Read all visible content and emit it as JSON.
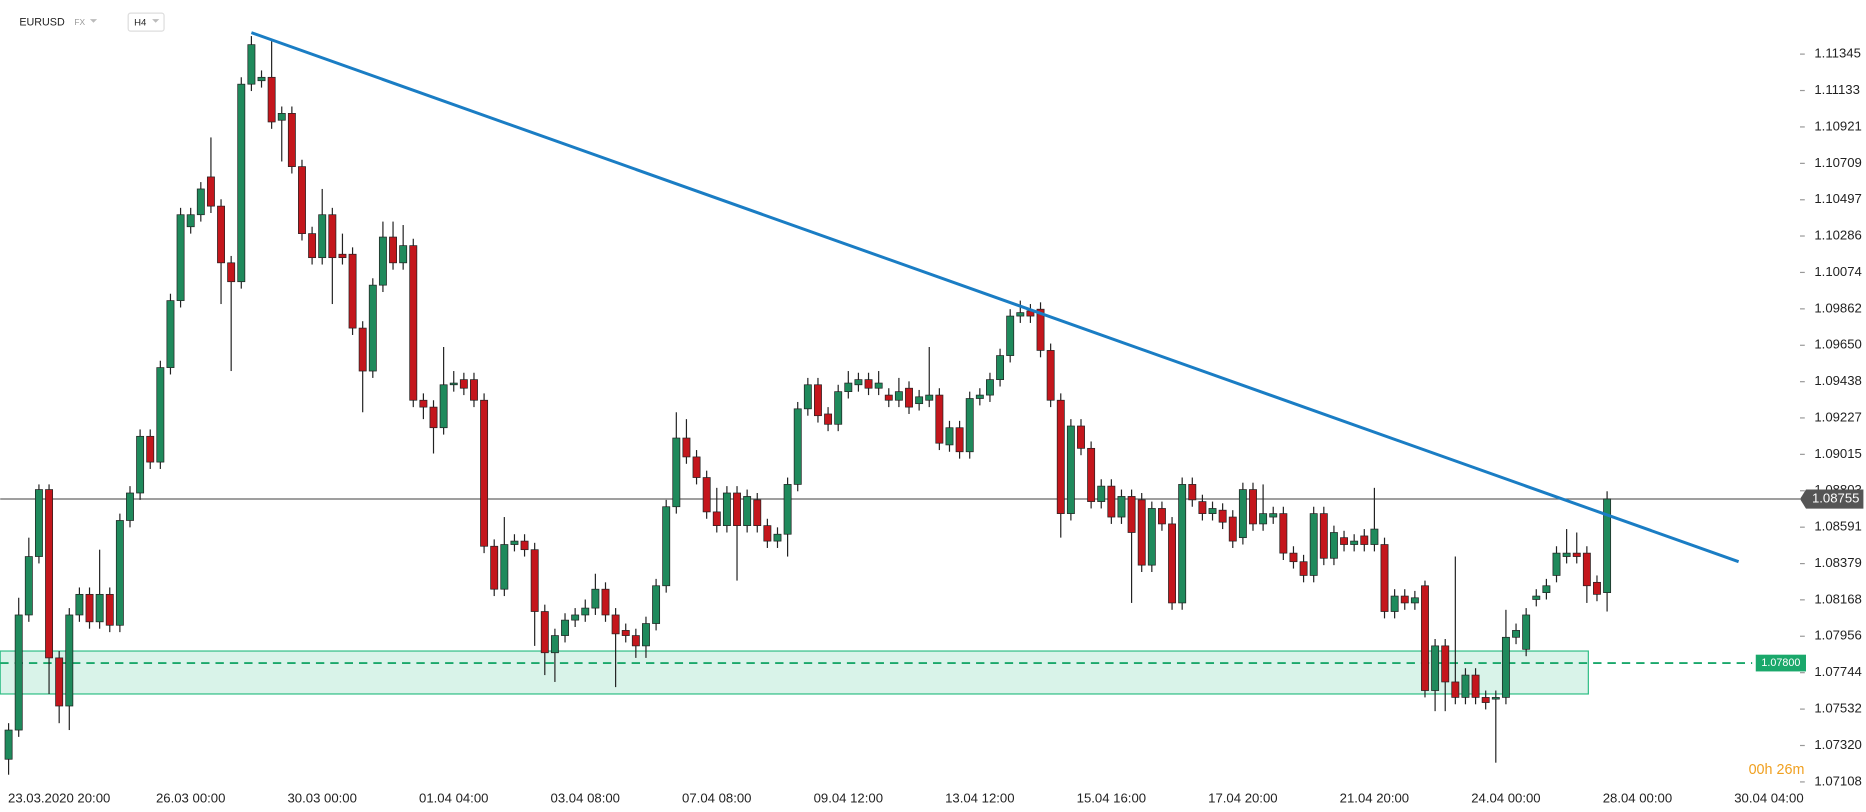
{
  "chart_data": {
    "type": "candlestick",
    "symbol": "EURUSD",
    "market": "FX",
    "timeframe": "H4",
    "countdown": "00h 26m",
    "up_color": "#1f8a5c",
    "down_color": "#c4161c",
    "ylim": [
      1.071,
      1.1166
    ],
    "yticks": [
      {
        "value": 1.11345,
        "label": "1.11345"
      },
      {
        "value": 1.11133,
        "label": "1.11133"
      },
      {
        "value": 1.10921,
        "label": "1.10921"
      },
      {
        "value": 1.10709,
        "label": "1.10709"
      },
      {
        "value": 1.10497,
        "label": "1.10497"
      },
      {
        "value": 1.10286,
        "label": "1.10286"
      },
      {
        "value": 1.10074,
        "label": "1.10074"
      },
      {
        "value": 1.09862,
        "label": "1.09862"
      },
      {
        "value": 1.0965,
        "label": "1.09650"
      },
      {
        "value": 1.09438,
        "label": "1.09438"
      },
      {
        "value": 1.09227,
        "label": "1.09227"
      },
      {
        "value": 1.09015,
        "label": "1.09015"
      },
      {
        "value": 1.08803,
        "label": "1.08803"
      },
      {
        "value": 1.08591,
        "label": "1.08591"
      },
      {
        "value": 1.08379,
        "label": "1.08379"
      },
      {
        "value": 1.08168,
        "label": "1.08168"
      },
      {
        "value": 1.07956,
        "label": "1.07956"
      },
      {
        "value": 1.07744,
        "label": "1.07744"
      },
      {
        "value": 1.07532,
        "label": "1.07532"
      },
      {
        "value": 1.0732,
        "label": "1.07320"
      },
      {
        "value": 1.07108,
        "label": "1.07108"
      }
    ],
    "categories": [
      null,
      null,
      null,
      null,
      null,
      "23.03.2020 20:00",
      null,
      null,
      null,
      null,
      null,
      null,
      null,
      null,
      null,
      null,
      null,
      null,
      "26.03 00:00",
      null,
      null,
      null,
      null,
      null,
      null,
      null,
      null,
      null,
      null,
      null,
      null,
      "30.03 00:00",
      null,
      null,
      null,
      null,
      null,
      null,
      null,
      null,
      null,
      null,
      null,
      null,
      "01.04 04:00",
      null,
      null,
      null,
      null,
      null,
      null,
      null,
      null,
      null,
      null,
      null,
      null,
      "03.04 08:00",
      null,
      null,
      null,
      null,
      null,
      null,
      null,
      null,
      null,
      null,
      null,
      null,
      "07.04 08:00",
      null,
      null,
      null,
      null,
      null,
      null,
      null,
      null,
      null,
      null,
      null,
      null,
      "09.04 12:00",
      null,
      null,
      null,
      null,
      null,
      null,
      null,
      null,
      null,
      null,
      null,
      null,
      "13.04 12:00",
      null,
      null,
      null,
      null,
      null,
      null,
      null,
      null,
      null,
      null,
      null,
      null,
      "15.04 16:00",
      null,
      null,
      null,
      null,
      null,
      null,
      null,
      null,
      null,
      null,
      null,
      null,
      "17.04 20:00",
      null,
      null,
      null,
      null,
      null,
      null,
      null,
      null,
      null,
      null,
      null,
      null,
      "21.04 20:00",
      null,
      null,
      null,
      null,
      null,
      null,
      null,
      null,
      null,
      null,
      null,
      null,
      "24.04 00:00",
      null,
      null,
      null,
      null,
      null,
      null,
      null,
      null,
      null,
      null,
      null,
      null,
      "28.04 00:00",
      null,
      null,
      null,
      null,
      null,
      null,
      null,
      null,
      null,
      null,
      null,
      null,
      "30.04 04:00"
    ],
    "open": [
      1.0724,
      1.0741,
      1.0808,
      1.0842,
      1.0881,
      1.0783,
      1.0755,
      1.0808,
      1.082,
      1.0804,
      1.082,
      1.0802,
      1.0863,
      1.0879,
      1.0912,
      1.0897,
      1.0952,
      1.0991,
      1.1034,
      1.1041,
      1.1063,
      1.1046,
      1.1013,
      1.1002,
      1.1117,
      1.1119,
      1.1121,
      1.1096,
      1.11,
      1.1069,
      1.103,
      1.1016,
      1.1041,
      1.1018,
      1.1018,
      1.0975,
      1.095,
      1.1,
      1.1028,
      1.1013,
      1.1023,
      1.0933,
      1.0929,
      1.0917,
      1.0942,
      1.0945,
      1.0945,
      1.0933,
      1.0848,
      1.0823,
      1.0849,
      1.0851,
      1.0846,
      1.081,
      1.0786,
      1.0796,
      1.0805,
      1.0808,
      1.0812,
      1.0823,
      1.0808,
      1.0799,
      1.0796,
      1.079,
      1.0803,
      1.0825,
      1.0871,
      1.0911,
      1.09,
      1.0888,
      1.0868,
      1.086,
      1.0879,
      1.086,
      1.0875,
      1.086,
      1.0851,
      1.0855,
      1.0884,
      1.0928,
      1.0942,
      1.0925,
      1.0919,
      1.0938,
      1.0942,
      1.0945,
      1.094,
      1.0936,
      1.0933,
      1.094,
      1.0931,
      1.0933,
      1.0936,
      1.0907,
      1.0917,
      1.0903,
      1.0934,
      1.0936,
      1.0945,
      1.0959,
      1.0982,
      1.0985,
      1.0986,
      1.0962,
      1.0933,
      1.0867,
      1.0918,
      1.0905,
      1.0874,
      1.0883,
      1.0865,
      1.0877,
      1.0875,
      1.0837,
      1.087,
      1.0861,
      1.0815,
      1.0884,
      1.0874,
      1.0867,
      1.0869,
      1.0865,
      1.0853,
      1.0881,
      1.0861,
      1.0865,
      1.0867,
      1.0844,
      1.0839,
      1.0831,
      1.0867,
      1.0841,
      1.0853,
      1.0849,
      1.0854,
      1.0849,
      1.0849,
      1.081,
      1.0819,
      1.0815,
      1.0825,
      1.0764,
      1.079,
      1.0769,
      1.076,
      1.0773,
      1.076,
      1.0759,
      1.076,
      1.0795,
      1.0788,
      1.0817,
      1.0821,
      1.0831,
      1.0842,
      1.0844,
      1.0844,
      1.0827,
      1.0821,
      null,
      null,
      null,
      null,
      null,
      null,
      null,
      null,
      null,
      null,
      null,
      null,
      null,
      null,
      null,
      null
    ],
    "high": [
      1.0745,
      1.0818,
      1.0853,
      1.0884,
      1.0884,
      1.0787,
      1.0812,
      1.0824,
      1.0824,
      1.0846,
      1.0824,
      1.0867,
      1.0883,
      1.0916,
      1.0916,
      1.0956,
      1.0995,
      1.1045,
      1.1045,
      1.106,
      1.1086,
      1.105,
      1.1017,
      1.1121,
      1.1145,
      1.1125,
      1.1142,
      1.1104,
      1.1104,
      1.1073,
      1.1034,
      1.1056,
      1.1045,
      1.103,
      1.1022,
      1.0979,
      1.1004,
      1.1037,
      1.1037,
      1.1035,
      1.1027,
      1.0937,
      1.0933,
      1.0964,
      1.095,
      1.0949,
      1.0949,
      1.0937,
      1.0852,
      1.0865,
      1.0855,
      1.0855,
      1.085,
      1.0814,
      1.08,
      1.0809,
      1.0812,
      1.0817,
      1.0832,
      1.0827,
      1.0812,
      1.0803,
      1.08,
      1.0807,
      1.0829,
      1.0875,
      1.0926,
      1.0922,
      1.0904,
      1.0892,
      1.0882,
      1.0883,
      1.0883,
      1.0881,
      1.0879,
      1.0864,
      1.0859,
      1.0888,
      1.0932,
      1.0946,
      1.0946,
      1.0929,
      1.0942,
      1.095,
      1.0949,
      1.0949,
      1.095,
      1.094,
      1.0946,
      1.0944,
      1.0939,
      1.0964,
      1.094,
      1.0921,
      1.0921,
      1.0938,
      1.094,
      1.0949,
      1.0963,
      1.0986,
      1.0991,
      1.0989,
      1.099,
      1.0966,
      1.0937,
      1.0922,
      1.0922,
      1.0909,
      1.0887,
      1.0887,
      1.0881,
      1.0881,
      1.0879,
      1.0874,
      1.0874,
      1.0865,
      1.0888,
      1.0888,
      1.0878,
      1.0874,
      1.0873,
      1.0869,
      1.0885,
      1.0885,
      1.0884,
      1.0871,
      1.0871,
      1.0848,
      1.0843,
      1.0871,
      1.0871,
      1.086,
      1.0857,
      1.0855,
      1.0858,
      1.0882,
      1.0853,
      1.0823,
      1.0823,
      1.0822,
      1.0828,
      1.0794,
      1.0794,
      1.0842,
      1.0777,
      1.0777,
      1.0764,
      1.0764,
      1.0811,
      1.0803,
      1.0812,
      1.0823,
      1.0829,
      1.0848,
      1.0858,
      1.0856,
      1.0848,
      1.0831,
      1.088,
      null,
      null,
      null,
      null,
      null,
      null,
      null,
      null,
      null,
      null,
      null,
      null,
      null,
      null,
      null,
      null
    ],
    "low": [
      1.0715,
      1.0737,
      1.0804,
      1.0838,
      1.0762,
      1.0745,
      1.0741,
      1.0804,
      1.08,
      1.08,
      1.0798,
      1.0798,
      1.0859,
      1.0875,
      1.0893,
      1.0893,
      1.0948,
      1.0987,
      1.103,
      1.1037,
      1.1042,
      1.0989,
      1.095,
      1.0998,
      1.1113,
      1.1115,
      1.1091,
      1.1072,
      1.1065,
      1.1026,
      1.1012,
      1.1012,
      1.0989,
      1.1012,
      1.0971,
      1.0926,
      1.0946,
      1.0996,
      1.1009,
      1.1009,
      1.0929,
      1.0922,
      1.0902,
      1.0913,
      1.0938,
      1.0936,
      1.0929,
      1.0844,
      1.0819,
      1.0819,
      1.0845,
      1.0842,
      1.079,
      1.0773,
      1.0769,
      1.0792,
      1.0801,
      1.0804,
      1.0808,
      1.0804,
      1.0766,
      1.0792,
      1.0783,
      1.0783,
      1.0799,
      1.0821,
      1.0867,
      1.0896,
      1.0884,
      1.0864,
      1.0856,
      1.0856,
      1.0828,
      1.0856,
      1.0856,
      1.0847,
      1.0847,
      1.0842,
      1.088,
      1.0924,
      1.092,
      1.0915,
      1.0915,
      1.0934,
      1.0938,
      1.0936,
      1.0936,
      1.0929,
      1.0929,
      1.0925,
      1.0927,
      1.0929,
      1.0904,
      1.0903,
      1.0899,
      1.0899,
      1.093,
      1.0932,
      1.0941,
      1.0955,
      1.0978,
      1.0978,
      1.0958,
      1.0929,
      1.0853,
      1.0863,
      1.0901,
      1.087,
      1.087,
      1.0861,
      1.0861,
      1.0815,
      1.0833,
      1.0833,
      1.0857,
      1.0811,
      1.0811,
      1.0871,
      1.0863,
      1.0863,
      1.0858,
      1.0847,
      1.0849,
      1.0857,
      1.0857,
      1.0861,
      1.084,
      1.0835,
      1.0827,
      1.0827,
      1.0837,
      1.0837,
      1.0845,
      1.0845,
      1.0845,
      1.0845,
      1.0806,
      1.0806,
      1.0811,
      1.0811,
      1.076,
      1.0752,
      1.0752,
      1.0756,
      1.0756,
      1.0756,
      1.0753,
      1.0722,
      1.0756,
      1.0791,
      1.0784,
      1.0813,
      1.0817,
      1.0827,
      1.0838,
      1.0838,
      1.0815,
      1.0816,
      1.081,
      null,
      null,
      null,
      null,
      null,
      null,
      null,
      null,
      null,
      null,
      null,
      null,
      null,
      null,
      null,
      null
    ],
    "close": [
      1.0741,
      1.0808,
      1.0842,
      1.0881,
      1.0783,
      1.0755,
      1.0808,
      1.082,
      1.0804,
      1.082,
      1.0802,
      1.0863,
      1.0879,
      1.0912,
      1.0897,
      1.0952,
      1.0991,
      1.1041,
      1.1041,
      1.1056,
      1.1046,
      1.1013,
      1.1002,
      1.1117,
      1.114,
      1.1121,
      1.1095,
      1.11,
      1.1069,
      1.103,
      1.1016,
      1.1041,
      1.1016,
      1.1016,
      1.0975,
      1.095,
      1.1,
      1.1028,
      1.1013,
      1.1023,
      1.0933,
      1.0929,
      1.0917,
      1.0942,
      1.0943,
      1.094,
      1.0933,
      1.0848,
      1.0823,
      1.0849,
      1.0851,
      1.0846,
      1.081,
      1.0786,
      1.0796,
      1.0805,
      1.0808,
      1.0812,
      1.0823,
      1.0808,
      1.0797,
      1.0796,
      1.079,
      1.0803,
      1.0825,
      1.0871,
      1.0911,
      1.09,
      1.0888,
      1.0868,
      1.086,
      1.0879,
      1.086,
      1.0877,
      1.086,
      1.0851,
      1.0855,
      1.0884,
      1.0928,
      1.0942,
      1.0924,
      1.0919,
      1.0938,
      1.0943,
      1.0945,
      1.094,
      1.0943,
      1.0933,
      1.0938,
      1.0929,
      1.0935,
      1.0936,
      1.0908,
      1.0917,
      1.0903,
      1.0934,
      1.0936,
      1.0945,
      1.0959,
      1.0982,
      1.0984,
      1.0982,
      1.0962,
      1.0933,
      1.0867,
      1.0918,
      1.0905,
      1.0874,
      1.0883,
      1.0865,
      1.0877,
      1.0856,
      1.0837,
      1.087,
      1.0861,
      1.0815,
      1.0884,
      1.0875,
      1.0867,
      1.087,
      1.0862,
      1.0851,
      1.0881,
      1.0861,
      1.0867,
      1.0867,
      1.0844,
      1.0839,
      1.0831,
      1.0867,
      1.0841,
      1.0856,
      1.0849,
      1.0851,
      1.0849,
      1.0858,
      1.081,
      1.0819,
      1.0815,
      1.0818,
      1.0764,
      1.079,
      1.0769,
      1.076,
      1.0773,
      1.076,
      1.0757,
      1.076,
      1.0795,
      1.0799,
      1.0808,
      1.0819,
      1.0825,
      1.0844,
      1.0844,
      1.0842,
      1.0825,
      1.082,
      1.08755,
      null,
      null,
      null,
      null,
      null,
      null,
      null,
      null,
      null,
      null,
      null,
      null,
      null,
      null,
      null,
      null
    ],
    "current_price": {
      "value": 1.08755,
      "label": "1.08755"
    },
    "level": {
      "value": 1.078,
      "label": "1.07800",
      "color": "#1aa86b"
    },
    "support_zone": {
      "low": 1.0762,
      "high": 1.0787,
      "color": "#2ebd85"
    },
    "trendline": {
      "x": [
        24,
        171
      ],
      "values": [
        1.1147,
        1.0839
      ],
      "color": "#1a7dc4"
    }
  }
}
